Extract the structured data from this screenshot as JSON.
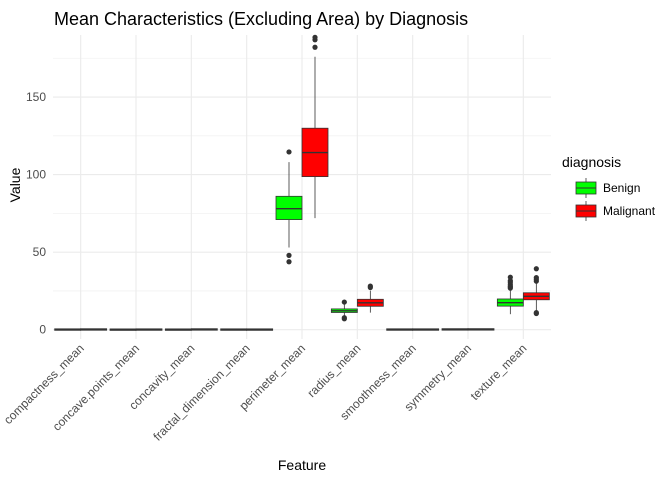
{
  "chart_data": {
    "type": "boxplot",
    "title": "Mean Characteristics (Excluding Area) by Diagnosis",
    "xlabel": "Feature",
    "ylabel": "Value",
    "ylim": [
      -6,
      190
    ],
    "yticks": [
      0,
      50,
      100,
      150
    ],
    "grid": true,
    "legend": {
      "title": "diagnosis",
      "placement": "right"
    },
    "categories": [
      "compactness_mean",
      "concave.points_mean",
      "concavity_mean",
      "fractal_dimension_mean",
      "perimeter_mean",
      "radius_mean",
      "smoothness_mean",
      "symmetry_mean",
      "texture_mean"
    ],
    "series": [
      {
        "name": "Benign",
        "color": "#00ff00",
        "boxes": [
          {
            "min": 0.02,
            "q1": 0.06,
            "median": 0.08,
            "q3": 0.1,
            "max": 0.17,
            "outliers": []
          },
          {
            "min": 0.0,
            "q1": 0.02,
            "median": 0.02,
            "q3": 0.03,
            "max": 0.06,
            "outliers": []
          },
          {
            "min": 0.0,
            "q1": 0.02,
            "median": 0.04,
            "q3": 0.06,
            "max": 0.14,
            "outliers": []
          },
          {
            "min": 0.05,
            "q1": 0.06,
            "median": 0.06,
            "q3": 0.07,
            "max": 0.08,
            "outliers": []
          },
          {
            "min": 53,
            "q1": 71,
            "median": 78,
            "q3": 86,
            "max": 108,
            "outliers": [
              43.8,
              47.9,
              114.6
            ]
          },
          {
            "min": 8.2,
            "q1": 11.1,
            "median": 12.2,
            "q3": 13.4,
            "max": 16.8,
            "outliers": [
              7.0,
              7.7,
              17.8
            ]
          },
          {
            "min": 0.05,
            "q1": 0.08,
            "median": 0.09,
            "q3": 0.1,
            "max": 0.13,
            "outliers": []
          },
          {
            "min": 0.11,
            "q1": 0.16,
            "median": 0.17,
            "q3": 0.19,
            "max": 0.25,
            "outliers": []
          },
          {
            "min": 10,
            "q1": 15.2,
            "median": 17.4,
            "q3": 19.8,
            "max": 26,
            "outliers": [
              26.8,
              27.5,
              28.2,
              29.3,
              30.7,
              31.6,
              33.8
            ]
          }
        ]
      },
      {
        "name": "Malignant",
        "color": "#ff0000",
        "boxes": [
          {
            "min": 0.05,
            "q1": 0.11,
            "median": 0.13,
            "q3": 0.17,
            "max": 0.35,
            "outliers": []
          },
          {
            "min": 0.02,
            "q1": 0.06,
            "median": 0.09,
            "q3": 0.1,
            "max": 0.2,
            "outliers": []
          },
          {
            "min": 0.02,
            "q1": 0.11,
            "median": 0.15,
            "q3": 0.2,
            "max": 0.43,
            "outliers": []
          },
          {
            "min": 0.05,
            "q1": 0.06,
            "median": 0.06,
            "q3": 0.07,
            "max": 0.1,
            "outliers": []
          },
          {
            "min": 71.9,
            "q1": 98.7,
            "median": 114.2,
            "q3": 129.9,
            "max": 176,
            "outliers": [
              182.1,
              186.9,
              188.5
            ]
          },
          {
            "min": 11,
            "q1": 15.1,
            "median": 17.3,
            "q3": 19.6,
            "max": 25.2,
            "outliers": [
              27.2,
              28.1
            ]
          },
          {
            "min": 0.07,
            "q1": 0.09,
            "median": 0.1,
            "q3": 0.11,
            "max": 0.14,
            "outliers": []
          },
          {
            "min": 0.13,
            "q1": 0.17,
            "median": 0.19,
            "q3": 0.21,
            "max": 0.3,
            "outliers": []
          },
          {
            "min": 12,
            "q1": 19.3,
            "median": 21.5,
            "q3": 23.8,
            "max": 30,
            "outliers": [
              10.4,
              11.0,
              31.3,
              32.5,
              33.6,
              39.3
            ]
          }
        ]
      }
    ]
  }
}
